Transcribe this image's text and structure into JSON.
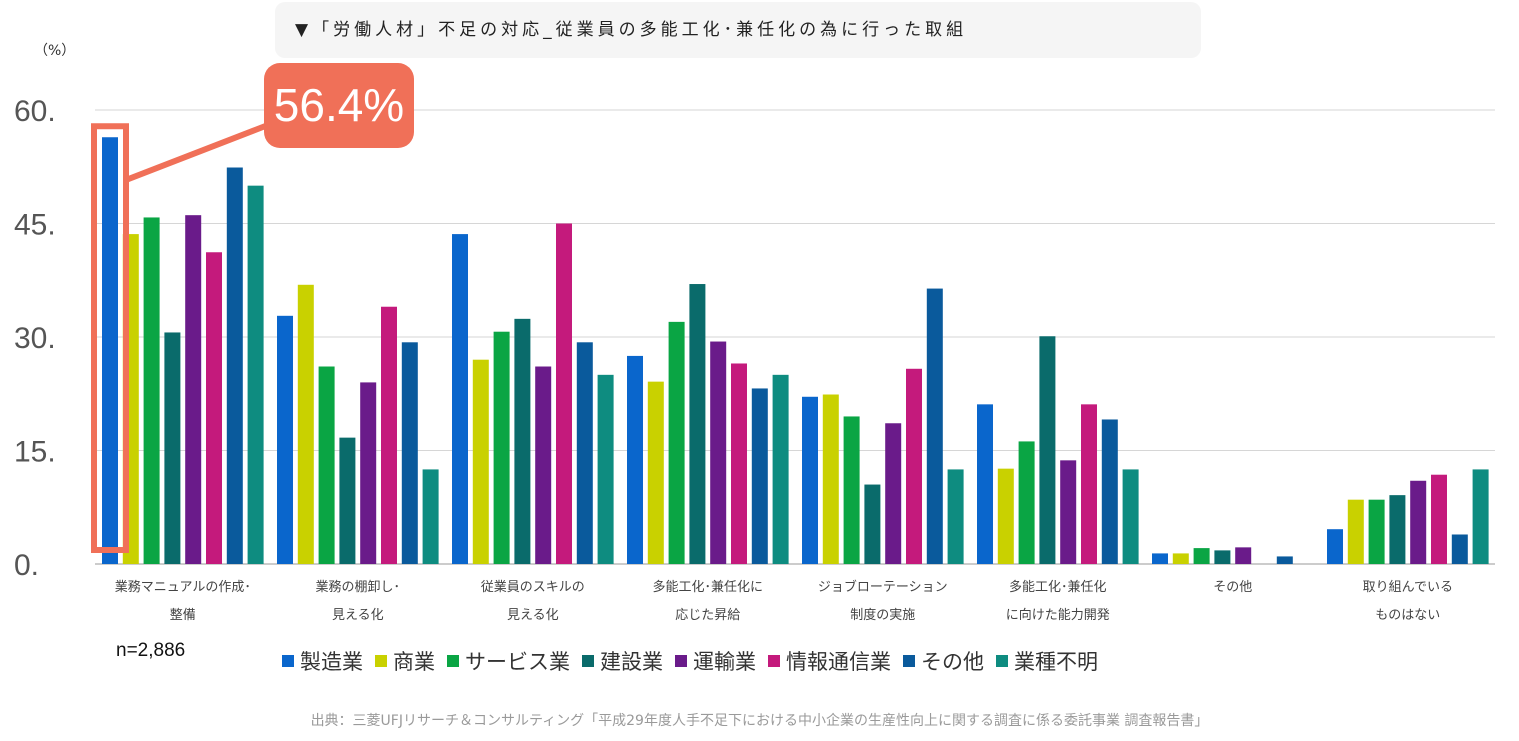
{
  "title": "▼「労働人材」不足の対応_従業員の多能工化･兼任化の為に行った取組",
  "unit": "（%）",
  "sample_size": "n=2,886",
  "callout": "56.4%",
  "source": "出典：三菱UFJリサーチ＆コンサルティング「平成29年度人手不足下における中小企業の生産性向上に関する調査に係る委託事業 調査報告書」",
  "colors": [
    "#0a66cc",
    "#c9d100",
    "#0aa544",
    "#0a6b6b",
    "#6a1b8a",
    "#c41a7c",
    "#0a5a9c",
    "#0e8c80"
  ],
  "callout_color": "#f07058",
  "chart_data": {
    "type": "bar",
    "ylim": [
      0,
      60
    ],
    "yticks": [
      "0.",
      "15.",
      "30.",
      "45.",
      "60."
    ],
    "ytick_values": [
      0,
      15,
      30,
      45,
      60
    ],
    "grid": true,
    "legend_position": "bottom",
    "categories": [
      [
        "業務マニュアルの作成･",
        "整備"
      ],
      [
        "業務の棚卸し･",
        "見える化"
      ],
      [
        "従業員のスキルの",
        "見える化"
      ],
      [
        "多能工化･兼任化に",
        "応じた昇給"
      ],
      [
        "ジョブローテーション",
        "制度の実施"
      ],
      [
        "多能工化･兼任化",
        "に向けた能力開発"
      ],
      [
        "その他",
        ""
      ],
      [
        "取り組んでいる",
        "ものはない"
      ]
    ],
    "series": [
      {
        "name": "製造業",
        "values": [
          56.4,
          32.8,
          43.6,
          27.5,
          22.1,
          21.1,
          1.4,
          4.6
        ]
      },
      {
        "name": "商業",
        "values": [
          43.6,
          36.9,
          27.0,
          24.1,
          22.4,
          12.6,
          1.4,
          8.5
        ]
      },
      {
        "name": "サービス業",
        "values": [
          45.8,
          26.1,
          30.7,
          32.0,
          19.5,
          16.2,
          2.1,
          8.5
        ]
      },
      {
        "name": "建設業",
        "values": [
          30.6,
          16.7,
          32.4,
          37.0,
          10.5,
          30.1,
          1.8,
          9.1
        ]
      },
      {
        "name": "運輸業",
        "values": [
          46.1,
          24.0,
          26.1,
          29.4,
          18.6,
          13.7,
          2.2,
          11.0
        ]
      },
      {
        "name": "情報通信業",
        "values": [
          41.2,
          34.0,
          45.0,
          26.5,
          25.8,
          21.1,
          0,
          11.8
        ]
      },
      {
        "name": "その他",
        "values": [
          52.4,
          29.3,
          29.3,
          23.2,
          36.4,
          19.1,
          1.0,
          3.9
        ]
      },
      {
        "name": "業種不明",
        "values": [
          50.0,
          12.5,
          25.0,
          25.0,
          12.5,
          12.5,
          0,
          12.5
        ]
      }
    ]
  }
}
